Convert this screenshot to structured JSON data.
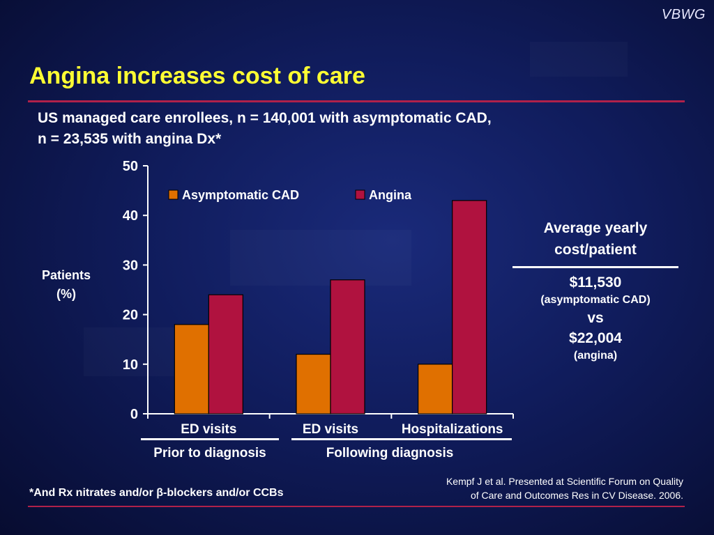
{
  "brand": "VBWG",
  "title": "Angina increases cost of care",
  "subtitle": {
    "line1": "US managed care enrollees, n = 140,001 with asymptomatic CAD,",
    "line2": "n = 23,535 with angina Dx*"
  },
  "chart_data": {
    "type": "bar",
    "title": "",
    "ylabel": [
      "Patients",
      "(%)"
    ],
    "ylim": [
      0,
      50
    ],
    "yticks": [
      0,
      10,
      20,
      30,
      40,
      50
    ],
    "categories": [
      "ED visits",
      "ED visits",
      "Hospitalizations"
    ],
    "category_groups": [
      {
        "label": "Prior to diagnosis",
        "categories": [
          0
        ]
      },
      {
        "label": "Following diagnosis",
        "categories": [
          1,
          2
        ]
      }
    ],
    "series": [
      {
        "name": "Asymptomatic CAD",
        "values": [
          18,
          12,
          10
        ],
        "color": "#e07000"
      },
      {
        "name": "Angina",
        "values": [
          24,
          27,
          43
        ],
        "color": "#b0123f"
      }
    ],
    "legend_position": "top-left",
    "grid": false
  },
  "sidebox": {
    "heading1": "Average yearly",
    "heading2": "cost/patient",
    "value1": "$11,530",
    "value1_note": "(asymptomatic CAD)",
    "versus": "vs",
    "value2": "$22,004",
    "value2_note": "(angina)"
  },
  "footnote": "*And Rx nitrates and/or β-blockers and/or CCBs",
  "source": {
    "line1": "Kempf J et al. Presented at Scientific Forum on Quality",
    "line2": "of Care and Outcomes Res in CV Disease. 2006."
  },
  "colors": {
    "title": "#ffff33",
    "accent_rule": "#b0214a",
    "background": "#101c5c"
  }
}
